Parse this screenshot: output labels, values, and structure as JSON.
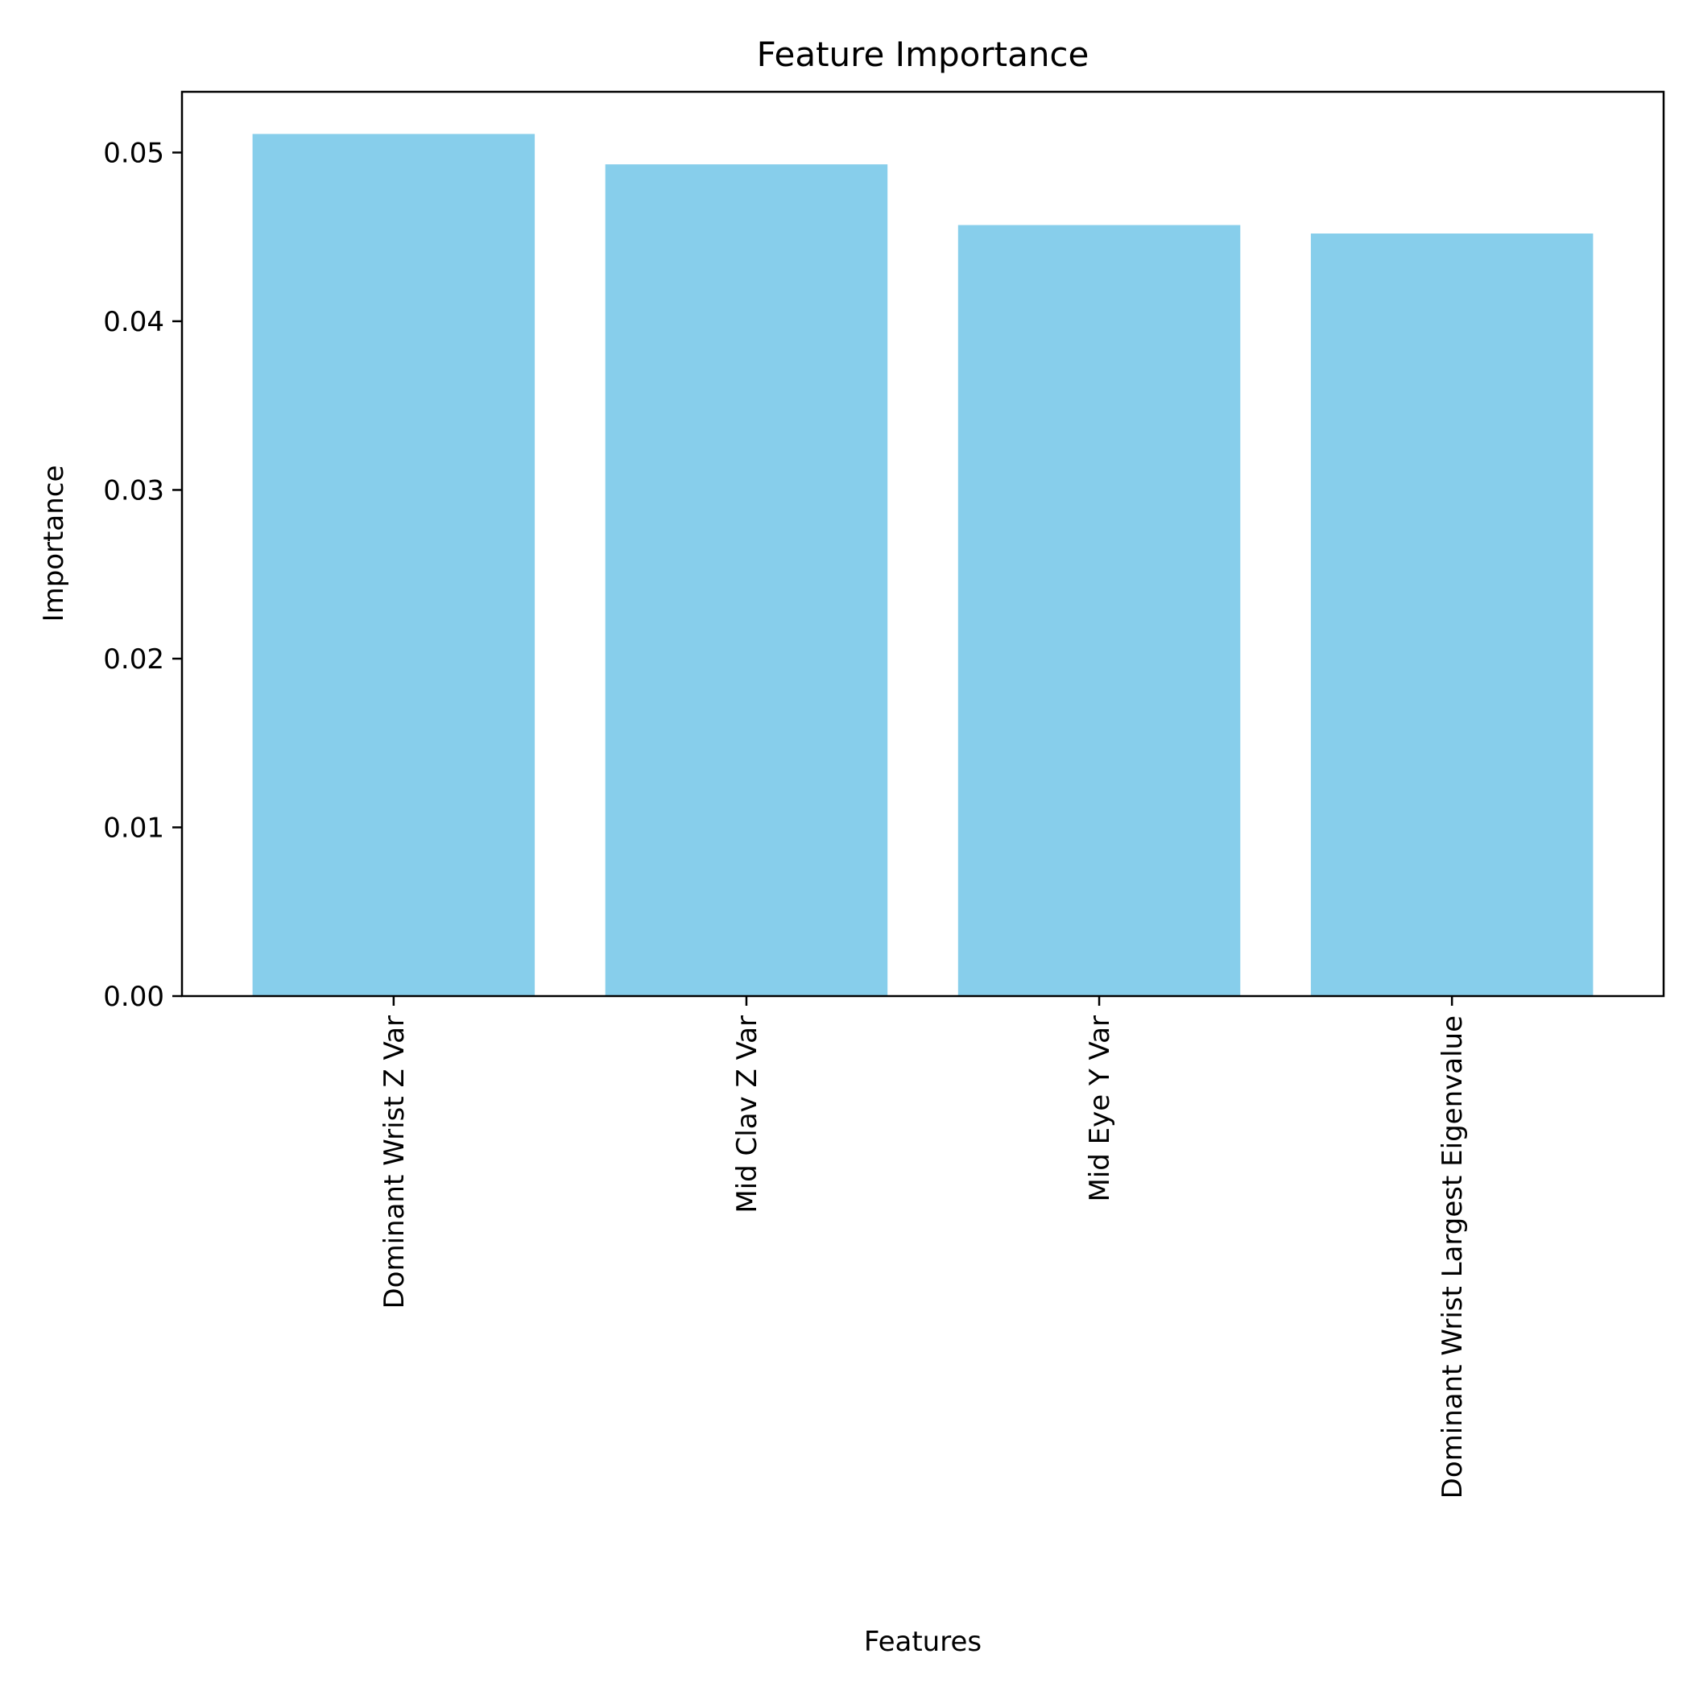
{
  "chart_data": {
    "type": "bar",
    "title": "Feature Importance",
    "xlabel": "Features",
    "ylabel": "Importance",
    "categories": [
      "Dominant Wrist Z Var",
      "Mid Clav Z Var",
      "Mid Eye Y Var",
      "Dominant Wrist Largest Eigenvalue"
    ],
    "values": [
      0.0511,
      0.0493,
      0.0457,
      0.0452
    ],
    "ylim": [
      0,
      0.0536
    ],
    "yticks": [
      0.0,
      0.01,
      0.02,
      0.03,
      0.04,
      0.05
    ],
    "ytick_labels": [
      "0.00",
      "0.01",
      "0.02",
      "0.03",
      "0.04",
      "0.05"
    ],
    "grid": false,
    "legend": "none",
    "bar_color": "#87CEEB"
  }
}
